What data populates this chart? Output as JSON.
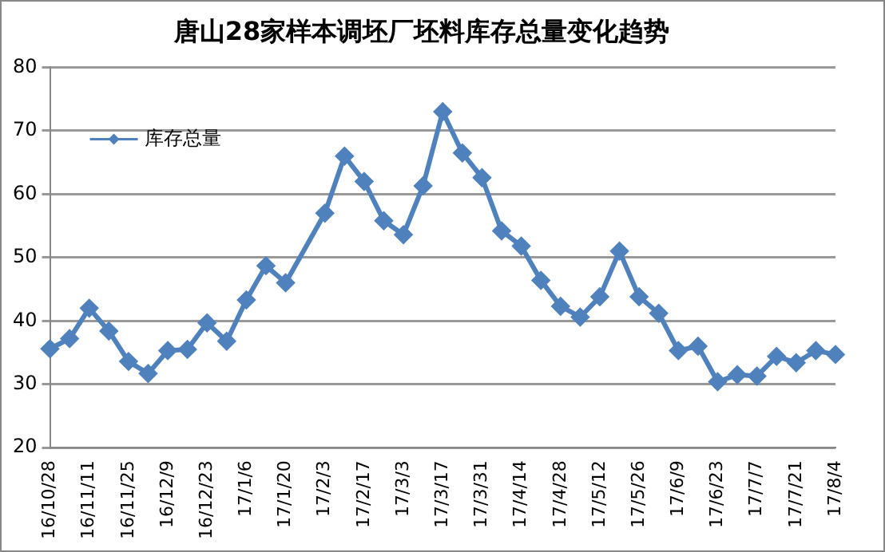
{
  "chart_data": {
    "type": "line",
    "title": "唐山28家样本调坯厂坯料库存总量变化趋势",
    "categories": [
      "16/10/28",
      null,
      "16/11/11",
      null,
      "16/11/25",
      null,
      "16/12/9",
      null,
      "16/12/23",
      null,
      "17/1/6",
      null,
      "17/1/20",
      null,
      "17/2/3",
      null,
      "17/2/17",
      null,
      "17/3/3",
      null,
      "17/3/17",
      null,
      "17/3/31",
      null,
      "17/4/14",
      null,
      "17/4/28",
      null,
      "17/5/12",
      null,
      "17/5/26",
      null,
      "17/6/9",
      null,
      "17/6/23",
      null,
      "17/7/7",
      null,
      "17/7/21",
      null,
      "17/8/4"
    ],
    "series": [
      {
        "name": "库存总量",
        "color": "#4f81bd",
        "values": [
          35.6,
          37.2,
          42.0,
          38.4,
          33.6,
          31.7,
          35.3,
          35.5,
          39.7,
          36.8,
          43.3,
          48.7,
          46.0,
          null,
          57.0,
          66.0,
          62.0,
          55.8,
          53.6,
          61.3,
          73.0,
          66.5,
          62.6,
          54.2,
          51.8,
          46.4,
          42.3,
          40.6,
          43.8,
          51.0,
          43.8,
          41.2,
          35.3,
          36.0,
          30.4,
          31.5,
          31.3,
          34.4,
          33.4,
          35.3,
          34.7
        ]
      }
    ],
    "ylim": [
      20,
      80
    ],
    "yticks": [
      20,
      30,
      40,
      50,
      60,
      70,
      80
    ],
    "grid": "y",
    "legend": "top left",
    "marker": "diamond",
    "line_style": "solid"
  }
}
